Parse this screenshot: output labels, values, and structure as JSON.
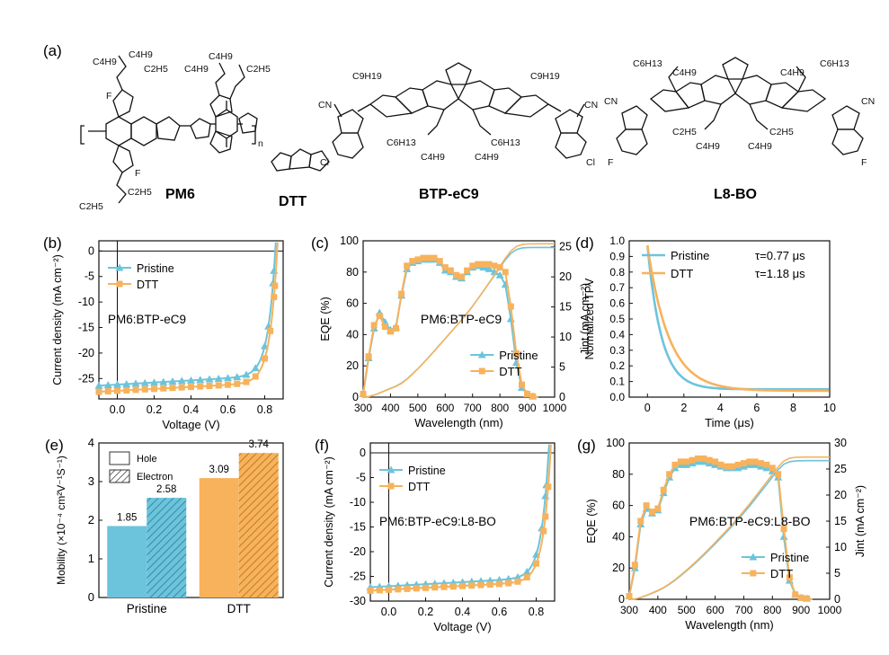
{
  "colors": {
    "pristine": "#6cc4dc",
    "dtt": "#f7b25b",
    "axis": "#111111"
  },
  "panel_labels": {
    "a": "(a)",
    "b": "(b)",
    "c": "(c)",
    "d": "(d)",
    "e": "(e)",
    "f": "(f)",
    "g": "(g)"
  },
  "molecules": {
    "pm6": {
      "name": "PM6",
      "subscript_n": "n",
      "alkyl": [
        "C4H9",
        "C2H5",
        "C4H9",
        "C2H5",
        "C4H9",
        "C2H5",
        "C4H9",
        "C2H5"
      ],
      "halogen": "F"
    },
    "dtt": {
      "name": "DTT"
    },
    "btp": {
      "name": "BTP-eC9",
      "chains": [
        "C9H19",
        "C9H19",
        "C6H13",
        "C4H9",
        "C6H13",
        "C4H9"
      ],
      "cn": "CN",
      "halogen": "Cl"
    },
    "l8bo": {
      "name": "L8-BO",
      "chains": [
        "C6H13",
        "C4H9",
        "C6H13",
        "C4H9",
        "C2H5",
        "C4H9",
        "C2H5",
        "C4H9"
      ],
      "cn": "CN",
      "halogen": "F"
    }
  },
  "chart_data": [
    {
      "id": "b",
      "type": "line",
      "panel": "(b)",
      "annotation": "PM6:BTP-eC9",
      "xlabel": "Voltage (V)",
      "ylabel": "Current density (mA cm⁻²)",
      "xlim": [
        -0.1,
        0.9
      ],
      "ylim": [
        -29,
        2
      ],
      "xticks": [
        "0.0",
        "0.2",
        "0.4",
        "0.6",
        "0.8"
      ],
      "yticks": [
        "0",
        "-5",
        "-10",
        "-15",
        "-20",
        "-25"
      ],
      "legend": [
        "Pristine",
        "DTT"
      ],
      "series": [
        {
          "name": "Pristine",
          "voc": 0.86,
          "jsc": 26.4,
          "slope": 1.3
        },
        {
          "name": "DTT",
          "voc": 0.87,
          "jsc": 27.6,
          "slope": 1.2
        }
      ]
    },
    {
      "id": "c",
      "type": "line",
      "panel": "(c)",
      "annotation": "PM6:BTP-eC9",
      "xlabel": "Wavelength (nm)",
      "ylabel": "EQE (%)",
      "y2label": "Jint (mA cm⁻²)",
      "xlim": [
        300,
        1000
      ],
      "ylim": [
        0,
        100
      ],
      "y2lim": [
        0,
        26
      ],
      "xticks": [
        "300",
        "400",
        "500",
        "600",
        "700",
        "800",
        "900",
        "1000"
      ],
      "yticks": [
        "0",
        "20",
        "40",
        "60",
        "80",
        "100"
      ],
      "y2ticks": [
        "0",
        "5",
        "10",
        "15",
        "20",
        "25"
      ],
      "legend": [
        "Pristine",
        "DTT"
      ],
      "series": [
        {
          "name": "Pristine",
          "x": [
            300,
            320,
            340,
            360,
            380,
            400,
            420,
            440,
            460,
            480,
            500,
            520,
            540,
            560,
            580,
            600,
            620,
            640,
            660,
            680,
            700,
            720,
            740,
            760,
            780,
            800,
            820,
            840,
            860,
            880,
            900,
            920,
            940
          ],
          "eqe": [
            2,
            25,
            44,
            54,
            48,
            43,
            45,
            65,
            82,
            86,
            87,
            88,
            88,
            88,
            86,
            81,
            80,
            77,
            76,
            80,
            83,
            84,
            83,
            82,
            80,
            78,
            72,
            50,
            22,
            6,
            2,
            0.5,
            0
          ],
          "jint_final": 24.9
        },
        {
          "name": "DTT",
          "x": [
            300,
            320,
            340,
            360,
            380,
            400,
            420,
            440,
            460,
            480,
            500,
            520,
            540,
            560,
            580,
            600,
            620,
            640,
            660,
            680,
            700,
            720,
            740,
            760,
            780,
            800,
            820,
            840,
            860,
            880,
            900,
            920,
            940
          ],
          "eqe": [
            2,
            26,
            46,
            52,
            45,
            42,
            44,
            66,
            84,
            87,
            88,
            89,
            89,
            89,
            87,
            83,
            81,
            78,
            77,
            81,
            84,
            85,
            85,
            85,
            84,
            83,
            80,
            58,
            28,
            8,
            2,
            0.5,
            0
          ],
          "jint_final": 25.5
        }
      ]
    },
    {
      "id": "d",
      "type": "line",
      "panel": "(d)",
      "xlabel": "Time (μs)",
      "ylabel": "Normalized TPV",
      "xlim": [
        -1,
        10
      ],
      "ylim": [
        0,
        1.0
      ],
      "xticks": [
        "0",
        "2",
        "4",
        "6",
        "8",
        "10"
      ],
      "yticks": [
        "0.0",
        "0.1",
        "0.2",
        "0.3",
        "0.4",
        "0.5",
        "0.6",
        "0.7",
        "0.8",
        "0.9",
        "1.0"
      ],
      "legend": [
        "Pristine",
        "DTT"
      ],
      "annotations": [
        "τ=0.77 μs",
        "τ=1.18 μs"
      ],
      "series": [
        {
          "name": "Pristine",
          "tau": 0.77,
          "baseline": 0.05
        },
        {
          "name": "DTT",
          "tau": 1.18,
          "baseline": 0.04
        }
      ]
    },
    {
      "id": "e",
      "type": "bar",
      "panel": "(e)",
      "ylabel": "Mobility (×10⁻⁴ cm²V⁻¹S⁻¹)",
      "categories": [
        "Pristine",
        "DTT"
      ],
      "ylim": [
        0,
        4
      ],
      "yticks": [
        "0",
        "1",
        "2",
        "3",
        "4"
      ],
      "legend": [
        "Hole",
        "Electron"
      ],
      "series": [
        {
          "name": "Hole",
          "values": [
            1.85,
            3.09
          ],
          "labels": [
            "1.85",
            "3.09"
          ]
        },
        {
          "name": "Electron",
          "values": [
            2.58,
            3.74
          ],
          "labels": [
            "2.58",
            "3.74"
          ]
        }
      ]
    },
    {
      "id": "f",
      "type": "line",
      "panel": "(f)",
      "annotation": "PM6:BTP-eC9:L8-BO",
      "xlabel": "Voltage (V)",
      "ylabel": "Current density (mA cm⁻²)",
      "xlim": [
        -0.1,
        0.9
      ],
      "ylim": [
        -30,
        2
      ],
      "xticks": [
        "0.0",
        "0.2",
        "0.4",
        "0.6",
        "0.8"
      ],
      "yticks": [
        "0",
        "-5",
        "-10",
        "-15",
        "-20",
        "-25",
        "-30"
      ],
      "legend": [
        "Pristine",
        "DTT"
      ],
      "series": [
        {
          "name": "Pristine",
          "voc": 0.87,
          "jsc": 27.2,
          "slope": 1.3
        },
        {
          "name": "DTT",
          "voc": 0.88,
          "jsc": 27.9,
          "slope": 1.2
        }
      ]
    },
    {
      "id": "g",
      "type": "line",
      "panel": "(g)",
      "annotation": "PM6:BTP-eC9:L8-BO",
      "xlabel": "Wavelength (nm)",
      "ylabel": "EQE (%)",
      "y2label": "Jint (mA cm⁻²)",
      "xlim": [
        300,
        1000
      ],
      "ylim": [
        0,
        100
      ],
      "y2lim": [
        0,
        30
      ],
      "xticks": [
        "300",
        "400",
        "500",
        "600",
        "700",
        "800",
        "900",
        "1000"
      ],
      "yticks": [
        "0",
        "20",
        "40",
        "60",
        "80",
        "100"
      ],
      "y2ticks": [
        "0",
        "5",
        "10",
        "15",
        "20",
        "25",
        "30"
      ],
      "legend": [
        "Pristine",
        "DTT"
      ],
      "series": [
        {
          "name": "Pristine",
          "x": [
            300,
            320,
            340,
            360,
            380,
            400,
            420,
            440,
            460,
            480,
            500,
            520,
            540,
            560,
            580,
            600,
            620,
            640,
            660,
            680,
            700,
            720,
            740,
            760,
            780,
            800,
            820,
            840,
            860,
            880,
            900,
            920,
            940
          ],
          "eqe": [
            2,
            20,
            48,
            58,
            55,
            57,
            68,
            78,
            84,
            86,
            86,
            87,
            88,
            88,
            87,
            86,
            85,
            84,
            84,
            84,
            85,
            86,
            86,
            85,
            84,
            82,
            78,
            40,
            12,
            3,
            1,
            0.5,
            0
          ],
          "jint_final": 26.6
        },
        {
          "name": "DTT",
          "x": [
            300,
            320,
            340,
            360,
            380,
            400,
            420,
            440,
            460,
            480,
            500,
            520,
            540,
            560,
            580,
            600,
            620,
            640,
            660,
            680,
            700,
            720,
            740,
            760,
            780,
            800,
            820,
            840,
            860,
            880,
            900,
            920,
            940
          ],
          "eqe": [
            2,
            22,
            50,
            60,
            56,
            58,
            70,
            80,
            86,
            88,
            88,
            89,
            90,
            90,
            89,
            88,
            86,
            85,
            85,
            86,
            87,
            88,
            88,
            87,
            86,
            84,
            80,
            45,
            14,
            3,
            1,
            0.5,
            0
          ],
          "jint_final": 27.3
        }
      ]
    }
  ]
}
